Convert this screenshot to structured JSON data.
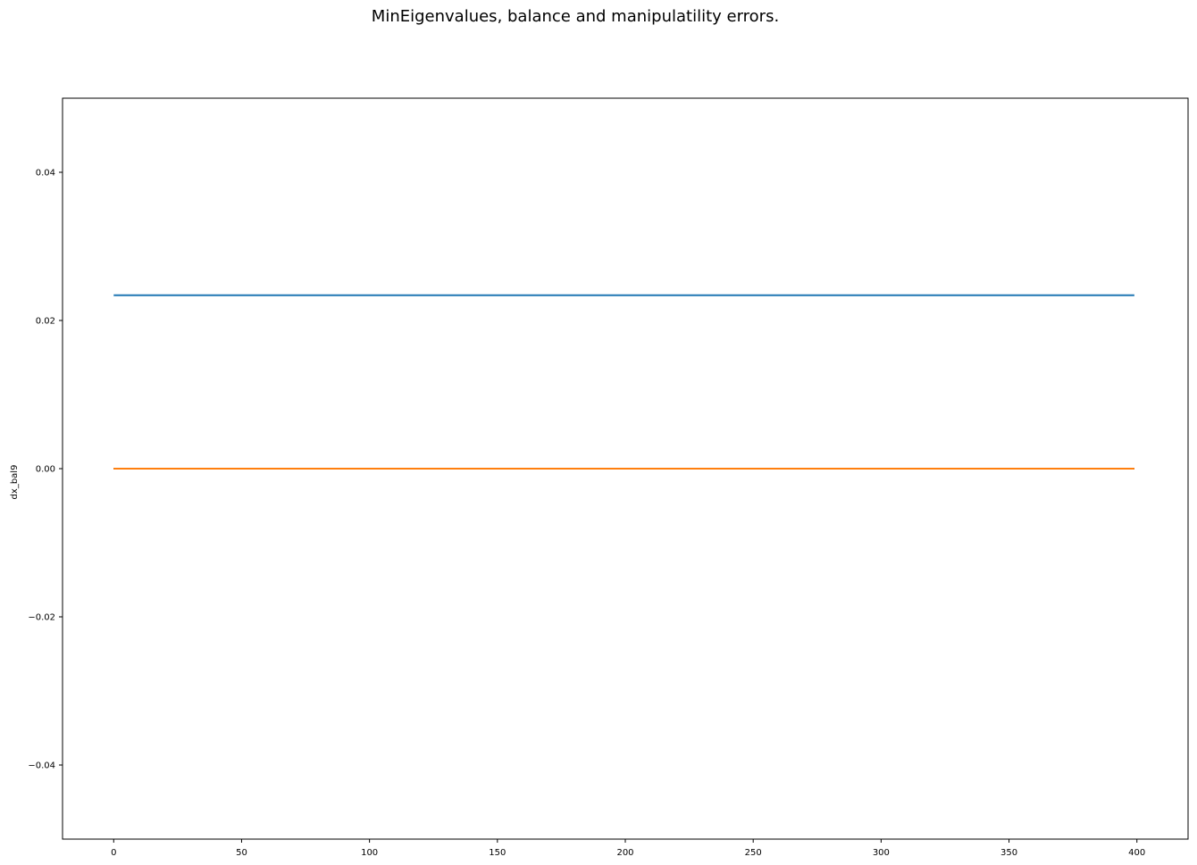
{
  "chart_data": {
    "type": "line",
    "title": "MinEigenvalues, balance and manipulatility errors.",
    "xlabel": "",
    "ylabel": "dx_bal9",
    "xlim": [
      -20,
      420
    ],
    "ylim": [
      -0.05,
      0.05
    ],
    "xticks": [
      0,
      50,
      100,
      150,
      200,
      250,
      300,
      350,
      400
    ],
    "xtick_labels": [
      "0",
      "50",
      "100",
      "150",
      "200",
      "250",
      "300",
      "350",
      "400"
    ],
    "yticks": [
      -0.04,
      -0.02,
      0.0,
      0.02,
      0.04
    ],
    "ytick_labels": [
      "−0.04",
      "−0.02",
      "0.00",
      "0.02",
      "0.04"
    ],
    "grid": false,
    "legend": "none",
    "series": [
      {
        "color": "#1f77b4",
        "x": [
          0,
          399
        ],
        "values": [
          0.0234,
          0.0234
        ]
      },
      {
        "color": "#ff7f0e",
        "x": [
          0,
          399
        ],
        "values": [
          0.0,
          0.0
        ]
      },
      {
        "color": "#2ca02c",
        "x": [
          0,
          399
        ],
        "values": [
          0.0,
          0.0
        ]
      },
      {
        "color": "#d62728",
        "x": [
          0,
          399
        ],
        "values": [
          0.0,
          0.0
        ]
      },
      {
        "color": "#ff7f0e",
        "x": [
          0,
          399
        ],
        "values": [
          0.0,
          0.0
        ]
      }
    ]
  }
}
